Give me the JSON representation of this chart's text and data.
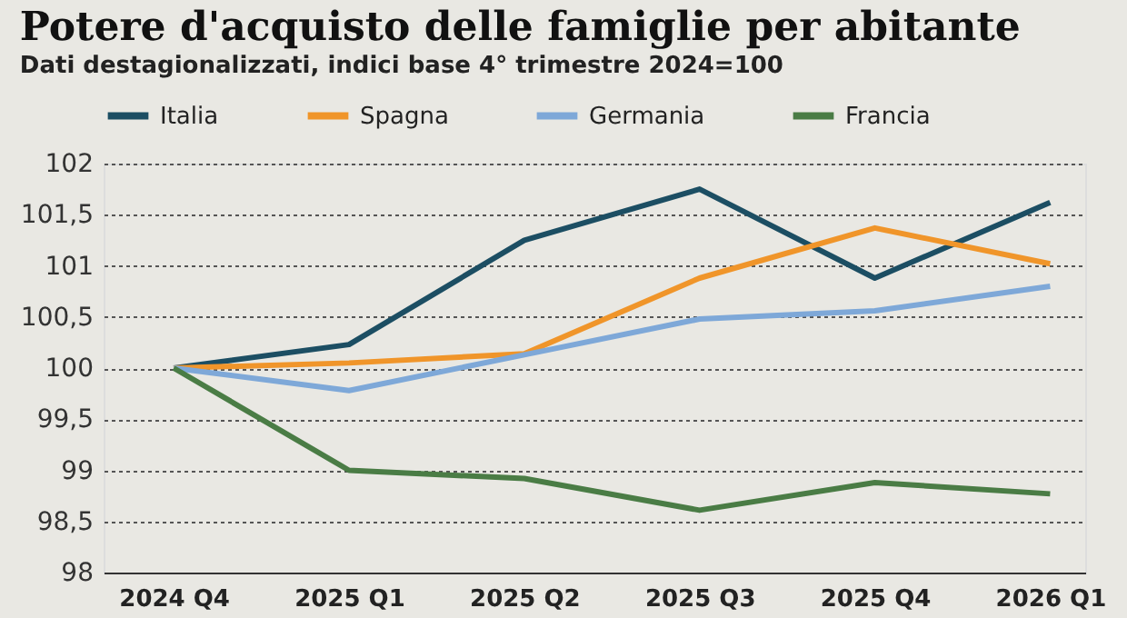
{
  "chart_data": {
    "type": "line",
    "title": "Potere d'acquisto delle famiglie per abitante",
    "subtitle": "Dati destagionalizzati, indici base 4° trimestre 2024=100",
    "categories": [
      "2024 Q4",
      "2025 Q1",
      "2025 Q2",
      "2025 Q3",
      "2025 Q4",
      "2026 Q1"
    ],
    "series": [
      {
        "name": "Italia",
        "color": "#1c4e63",
        "values": [
          100,
          100.23,
          101.25,
          101.75,
          100.88,
          101.62
        ]
      },
      {
        "name": "Spagna",
        "color": "#f0952a",
        "values": [
          100,
          100.05,
          100.14,
          100.88,
          101.37,
          101.02
        ]
      },
      {
        "name": "Germania",
        "color": "#7ea8d8",
        "values": [
          100,
          99.78,
          100.13,
          100.48,
          100.56,
          100.8
        ]
      },
      {
        "name": "Francia",
        "color": "#4a7c45",
        "values": [
          100,
          99.0,
          98.92,
          98.61,
          98.88,
          98.77
        ]
      }
    ],
    "ylim": [
      98,
      102
    ],
    "yticks": [
      98,
      {
        "value": 98.5,
        "label": "98,5"
      },
      99,
      {
        "value": 99.5,
        "label": "99,5"
      },
      100,
      {
        "value": 100.5,
        "label": "100,5"
      },
      101,
      {
        "value": 101.5,
        "label": "101,5"
      },
      102
    ],
    "grid": "y",
    "legend": "top",
    "line_style": "solid",
    "marker": "none"
  }
}
